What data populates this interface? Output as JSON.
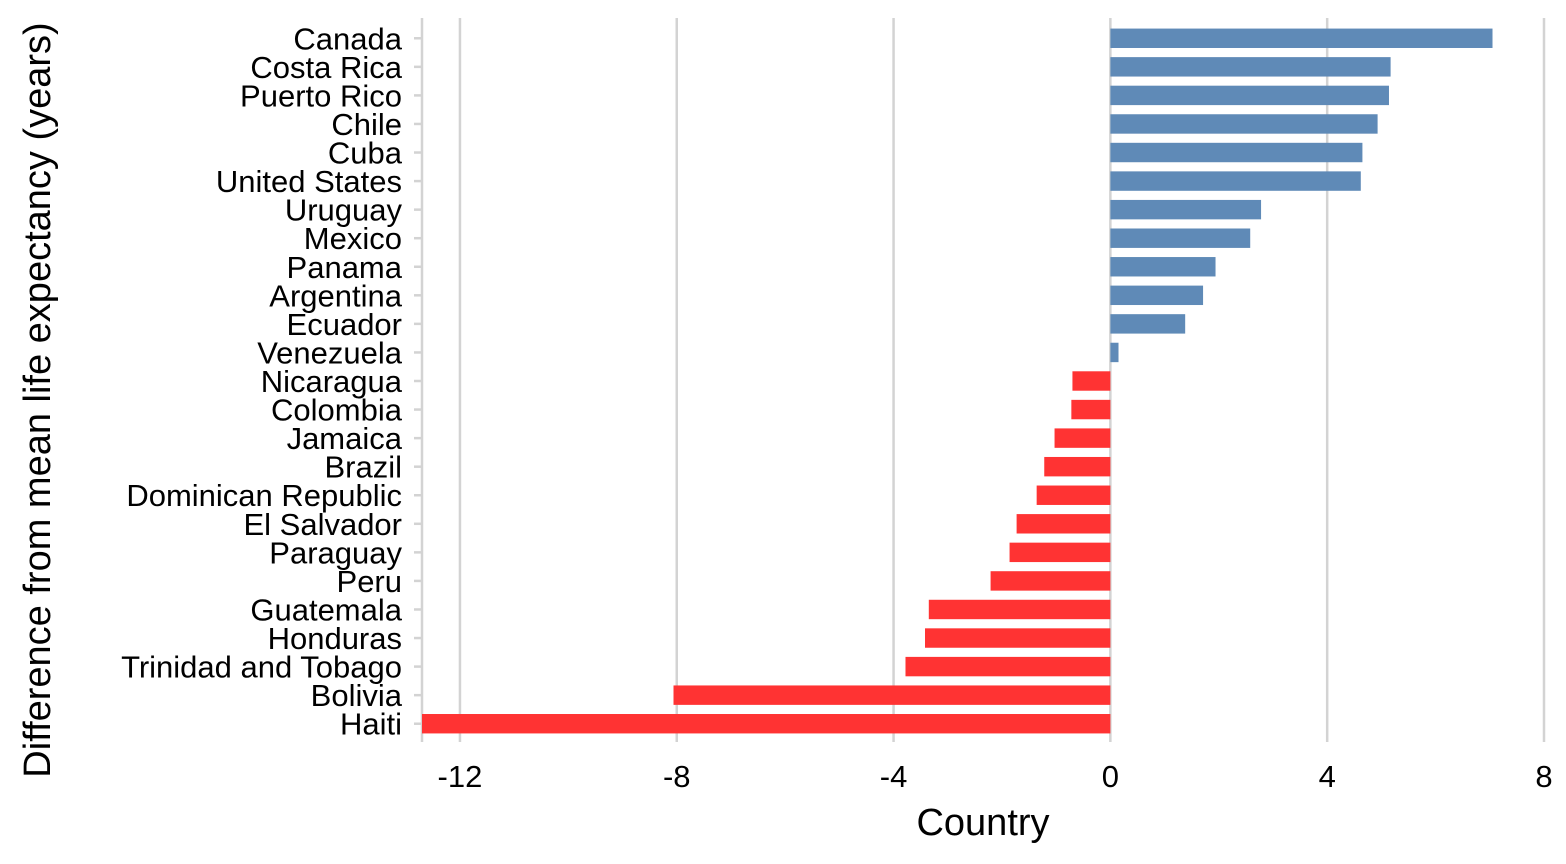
{
  "chart_data": {
    "type": "bar",
    "orientation": "horizontal",
    "xlabel": "Country",
    "ylabel": "Difference from mean life expectancy (years)",
    "xlim": [
      -12.7,
      8.0
    ],
    "xticks": [
      -12,
      -8,
      -4,
      0,
      4,
      8
    ],
    "xtick_labels": [
      "-12",
      "-8",
      "-4",
      "0",
      "4",
      "8"
    ],
    "grid": "vertical",
    "colors": {
      "positive": "#5F8AB7",
      "negative": "#FF3333",
      "grid": "#D3D3D3"
    },
    "categories": [
      "Canada",
      "Costa Rica",
      "Puerto Rico",
      "Chile",
      "Cuba",
      "United States",
      "Uruguay",
      "Mexico",
      "Panama",
      "Argentina",
      "Ecuador",
      "Venezuela",
      "Nicaragua",
      "Colombia",
      "Jamaica",
      "Brazil",
      "Dominican Republic",
      "El Salvador",
      "Paraguay",
      "Peru",
      "Guatemala",
      "Honduras",
      "Trinidad and Tobago",
      "Bolivia",
      "Haiti"
    ],
    "values": [
      7.05,
      5.17,
      5.14,
      4.93,
      4.65,
      4.62,
      2.78,
      2.58,
      1.94,
      1.71,
      1.38,
      0.15,
      -0.7,
      -0.72,
      -1.03,
      -1.22,
      -1.36,
      -1.73,
      -1.86,
      -2.21,
      -3.35,
      -3.42,
      -3.78,
      -8.06,
      -12.7
    ]
  }
}
